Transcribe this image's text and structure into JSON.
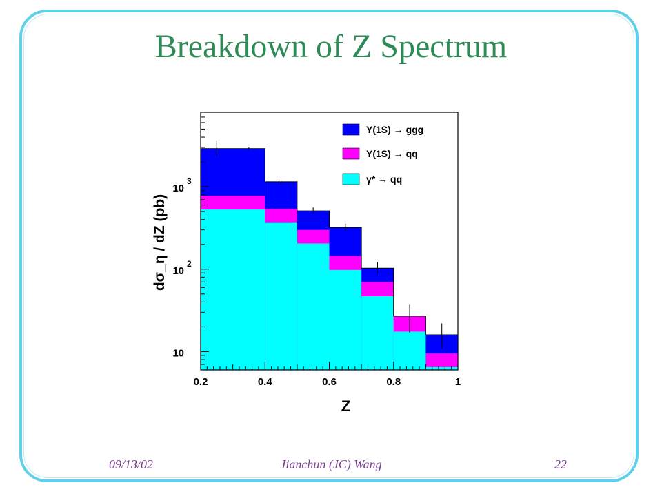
{
  "slide": {
    "title": "Breakdown of Z Spectrum",
    "footer_date": "09/13/02",
    "footer_author": "Jianchun (JC) Wang",
    "footer_page": "22"
  },
  "chart_data": {
    "type": "bar",
    "stacked": true,
    "log_y": true,
    "xlabel": "Z",
    "ylabel": "dσ_η / dZ (pb)",
    "xlim": [
      0.2,
      1.0
    ],
    "ylim": [
      6,
      8000
    ],
    "x_ticks": [
      "0.2",
      "0.4",
      "0.6",
      "0.8",
      "1"
    ],
    "y_ticks": [
      {
        "value": 10,
        "base": "10",
        "exp": ""
      },
      {
        "value": 100,
        "base": "10",
        "exp": "2"
      },
      {
        "value": 1000,
        "base": "10",
        "exp": "3"
      }
    ],
    "bins": [
      [
        0.2,
        0.4
      ],
      [
        0.4,
        0.5
      ],
      [
        0.5,
        0.6
      ],
      [
        0.6,
        0.7
      ],
      [
        0.7,
        0.8
      ],
      [
        0.8,
        0.9
      ],
      [
        0.9,
        1.0
      ]
    ],
    "series": [
      {
        "name": "γ* → qq",
        "color": "#00ffff",
        "values": [
          530,
          370,
          205,
          98,
          47,
          17.5,
          6.5
        ]
      },
      {
        "name": "Υ(1S) → qq",
        "color": "#ff00ff",
        "values": [
          780,
          540,
          300,
          145,
          70,
          27,
          9.5
        ]
      },
      {
        "name": "Υ(1S) → ggg",
        "color": "#0000ff",
        "values": [
          2900,
          1150,
          510,
          320,
          103,
          27,
          16
        ]
      }
    ],
    "data_points": [
      {
        "x": 0.25,
        "y": 2900,
        "err_low": 2350,
        "err_high": 3650
      },
      {
        "x": 0.35,
        "y": 2900,
        "err_low": 2800,
        "err_high": 3000
      },
      {
        "x": 0.45,
        "y": 1150,
        "err_low": 1060,
        "err_high": 1240
      },
      {
        "x": 0.55,
        "y": 510,
        "err_low": 465,
        "err_high": 560
      },
      {
        "x": 0.65,
        "y": 320,
        "err_low": 290,
        "err_high": 355
      },
      {
        "x": 0.75,
        "y": 103,
        "err_low": 88,
        "err_high": 122
      },
      {
        "x": 0.85,
        "y": 27,
        "err_low": 17,
        "err_high": 37
      },
      {
        "x": 0.95,
        "y": 16,
        "err_low": 11,
        "err_high": 22
      }
    ],
    "legend": [
      {
        "label": "Υ(1S) → ggg",
        "color": "#0000ff"
      },
      {
        "label": "Υ(1S) → qq",
        "color": "#ff00ff"
      },
      {
        "label": "γ* → qq",
        "color": "#00ffff"
      }
    ],
    "legend_position": "top-right"
  }
}
